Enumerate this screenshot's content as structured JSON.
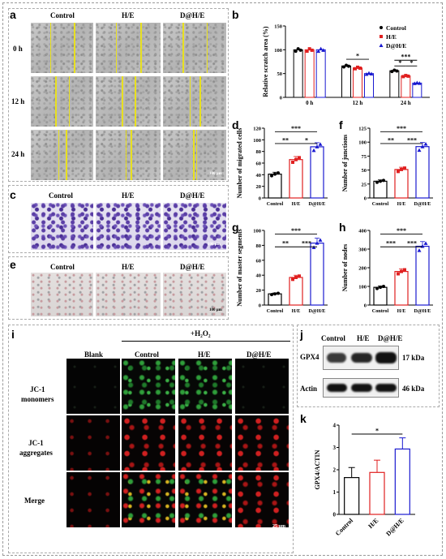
{
  "panels": {
    "a": {
      "label": "a",
      "cols": [
        "Control",
        "H/E",
        "D@H/E"
      ],
      "rows": [
        "0 h",
        "12 h",
        "24 h"
      ],
      "scale": "100 µm"
    },
    "b": {
      "label": "b",
      "ylabel": "Relative scratch area (%)",
      "legend": [
        "Control",
        "H/E",
        "D@H/E"
      ]
    },
    "c": {
      "label": "c",
      "cols": [
        "Control",
        "H/E",
        "D@H/E"
      ],
      "scale": "100 µm"
    },
    "d": {
      "label": "d",
      "ylabel": "Number of migrated cells"
    },
    "e": {
      "label": "e",
      "cols": [
        "Control",
        "H/E",
        "D@H/E"
      ],
      "scale": "100 µm"
    },
    "f": {
      "label": "f",
      "ylabel": "Number of junctions"
    },
    "g": {
      "label": "g",
      "ylabel": "Number of master segments"
    },
    "h": {
      "label": "h",
      "ylabel": "Number of nodes"
    },
    "i": {
      "label": "i",
      "treatment": "+H₂O₂",
      "cols": [
        "Blank",
        "Control",
        "H/E",
        "D@H/E"
      ],
      "rows": [
        "JC-1 monomers",
        "JC-1 aggregates",
        "Merge"
      ],
      "scale": "25 µm"
    },
    "j": {
      "label": "j",
      "cols": [
        "Control",
        "H/E",
        "D@H/E"
      ],
      "rows": [
        "GPX4",
        "Actin"
      ],
      "sizes": [
        "17 kDa",
        "46 kDa"
      ]
    },
    "k": {
      "label": "k",
      "ylabel": "GPX4/ACTIN"
    }
  },
  "chart_data": [
    {
      "panel": "b",
      "type": "bar",
      "categories": [
        "0 h",
        "12 h",
        "24 h"
      ],
      "series": [
        {
          "name": "Control",
          "values": [
            100,
            66,
            56
          ],
          "color": "#000000",
          "marker": "circle"
        },
        {
          "name": "H/E",
          "values": [
            100,
            62,
            45
          ],
          "color": "#e02020",
          "marker": "square"
        },
        {
          "name": "D@H/E",
          "values": [
            100,
            50,
            30
          ],
          "color": "#1a1ad0",
          "marker": "triangle"
        }
      ],
      "ylim": [
        0,
        150
      ],
      "yticks": [
        0,
        50,
        100,
        150
      ],
      "significance": [
        [
          "*",
          "12 h"
        ],
        [
          "***",
          "24 h"
        ],
        [
          "*",
          "24 h"
        ],
        [
          "*",
          "24 h"
        ]
      ],
      "legend_position": "top-right"
    },
    {
      "panel": "d",
      "type": "bar",
      "categories": [
        "Control",
        "H/E",
        "D@H/E"
      ],
      "values": [
        41,
        66,
        88
      ],
      "colors": [
        "#000000",
        "#e02020",
        "#1a1ad0"
      ],
      "ylim": [
        0,
        120
      ],
      "yticks": [
        0,
        20,
        40,
        60,
        80,
        100,
        120
      ],
      "significance": [
        "**",
        "*",
        "***"
      ]
    },
    {
      "panel": "f",
      "type": "bar",
      "categories": [
        "Control",
        "H/E",
        "D@H/E"
      ],
      "values": [
        30,
        51,
        92
      ],
      "colors": [
        "#000000",
        "#e02020",
        "#1a1ad0"
      ],
      "ylim": [
        0,
        125
      ],
      "yticks": [
        0,
        25,
        50,
        75,
        100,
        125
      ],
      "significance": [
        "**",
        "***",
        "***"
      ]
    },
    {
      "panel": "g",
      "type": "bar",
      "categories": [
        "Control",
        "H/E",
        "D@H/E"
      ],
      "values": [
        15,
        37,
        83
      ],
      "colors": [
        "#000000",
        "#e02020",
        "#1a1ad0"
      ],
      "ylim": [
        0,
        100
      ],
      "yticks": [
        0,
        20,
        40,
        60,
        80,
        100
      ],
      "significance": [
        "**",
        "***",
        "***"
      ]
    },
    {
      "panel": "h",
      "type": "bar",
      "categories": [
        "Control",
        "H/E",
        "D@H/E"
      ],
      "values": [
        95,
        180,
        315
      ],
      "colors": [
        "#000000",
        "#e02020",
        "#1a1ad0"
      ],
      "ylim": [
        0,
        400
      ],
      "yticks": [
        0,
        100,
        200,
        300,
        400
      ],
      "significance": [
        "***",
        "***",
        "***"
      ]
    },
    {
      "panel": "k",
      "type": "bar",
      "categories": [
        "Control",
        "H/E",
        "D@H/E"
      ],
      "values": [
        1.65,
        1.88,
        2.93
      ],
      "errors": [
        0.45,
        0.55,
        0.5
      ],
      "colors": [
        "#000000",
        "#e02020",
        "#1a1ad0"
      ],
      "ylim": [
        0,
        4
      ],
      "yticks": [
        0,
        1,
        2,
        3,
        4
      ],
      "significance": [
        "*"
      ]
    }
  ]
}
